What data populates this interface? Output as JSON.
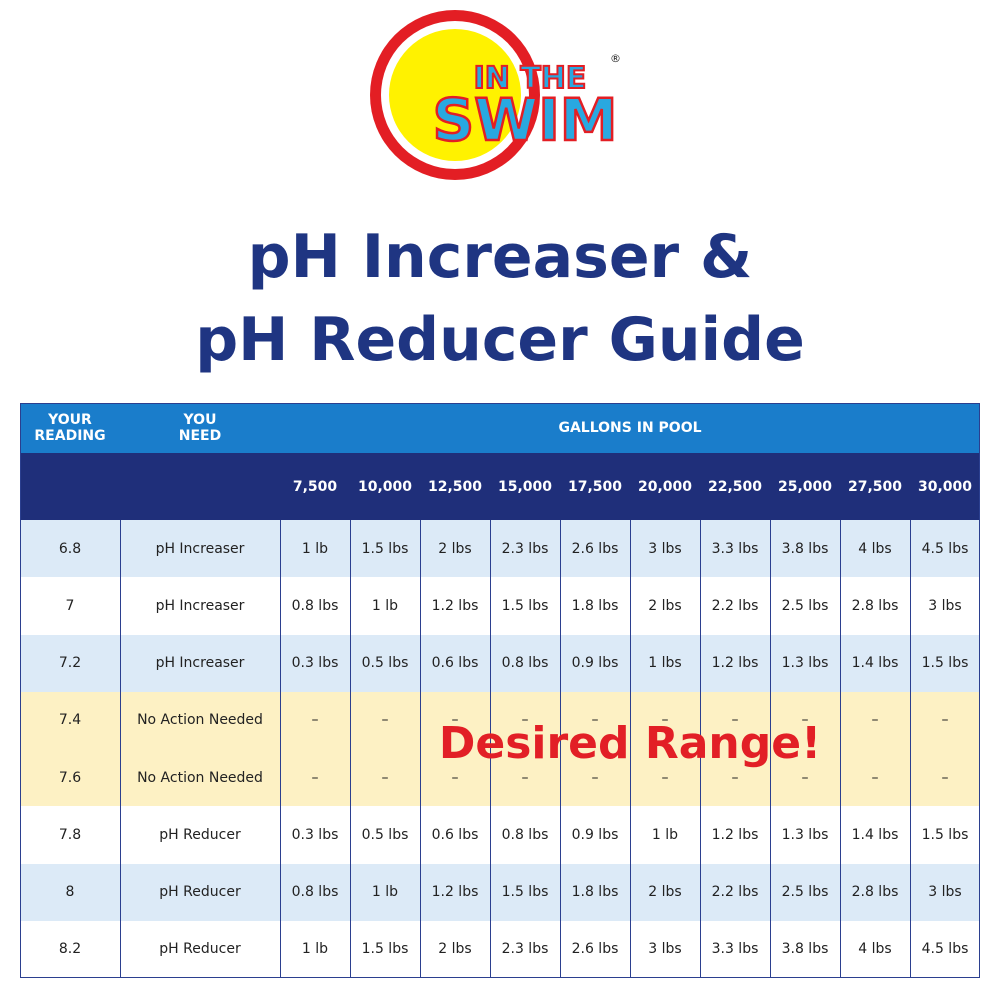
{
  "logo": {
    "line1": "IN THE",
    "line2": "SWIM",
    "mark": "®"
  },
  "title": [
    "pH Increaser &",
    "pH Reducer Guide"
  ],
  "table": {
    "header": [
      "YOUR READING",
      "YOU NEED"
    ],
    "group_header": "GALLONS IN POOL",
    "gallons": [
      "7,500",
      "10,000",
      "12,500",
      "15,000",
      "17,500",
      "20,000",
      "22,500",
      "25,000",
      "27,500",
      "30,000"
    ],
    "rows": [
      {
        "reading": "6.8",
        "need": "pH Increaser",
        "amounts": [
          "1 lb",
          "1.5 lbs",
          "2 lbs",
          "2.3 lbs",
          "2.6 lbs",
          "3 lbs",
          "3.3 lbs",
          "3.8 lbs",
          "4 lbs",
          "4.5 lbs"
        ]
      },
      {
        "reading": "7",
        "need": "pH Increaser",
        "amounts": [
          "0.8 lbs",
          "1 lb",
          "1.2 lbs",
          "1.5 lbs",
          "1.8 lbs",
          "2 lbs",
          "2.2 lbs",
          "2.5 lbs",
          "2.8 lbs",
          "3 lbs"
        ]
      },
      {
        "reading": "7.2",
        "need": "pH Increaser",
        "amounts": [
          "0.3 lbs",
          "0.5 lbs",
          "0.6 lbs",
          "0.8 lbs",
          "0.9 lbs",
          "1 lbs",
          "1.2 lbs",
          "1.3 lbs",
          "1.4 lbs",
          "1.5 lbs"
        ]
      },
      {
        "reading": "7.4",
        "need": "No Action Needed",
        "amounts": [
          "–",
          "–",
          "–",
          "–",
          "–",
          "–",
          "–",
          "–",
          "–",
          "–"
        ]
      },
      {
        "reading": "7.6",
        "need": "No Action Needed",
        "amounts": [
          "–",
          "–",
          "–",
          "–",
          "–",
          "–",
          "–",
          "–",
          "–",
          "–"
        ]
      },
      {
        "reading": "7.8",
        "need": "pH Reducer",
        "amounts": [
          "0.3 lbs",
          "0.5 lbs",
          "0.6 lbs",
          "0.8 lbs",
          "0.9 lbs",
          "1 lb",
          "1.2 lbs",
          "1.3 lbs",
          "1.4 lbs",
          "1.5 lbs"
        ]
      },
      {
        "reading": "8",
        "need": "pH Reducer",
        "amounts": [
          "0.8 lbs",
          "1 lb",
          "1.2 lbs",
          "1.5 lbs",
          "1.8 lbs",
          "2 lbs",
          "2.2 lbs",
          "2.5 lbs",
          "2.8 lbs",
          "3 lbs"
        ]
      },
      {
        "reading": "8.2",
        "need": "pH Reducer",
        "amounts": [
          "1 lb",
          "1.5 lbs",
          "2 lbs",
          "2.3 lbs",
          "2.6 lbs",
          "3 lbs",
          "3.3 lbs",
          "3.8 lbs",
          "4 lbs",
          "4.5 lbs"
        ]
      }
    ],
    "highlight_rows": [
      3,
      4
    ],
    "overlay": "Desired Range!"
  }
}
